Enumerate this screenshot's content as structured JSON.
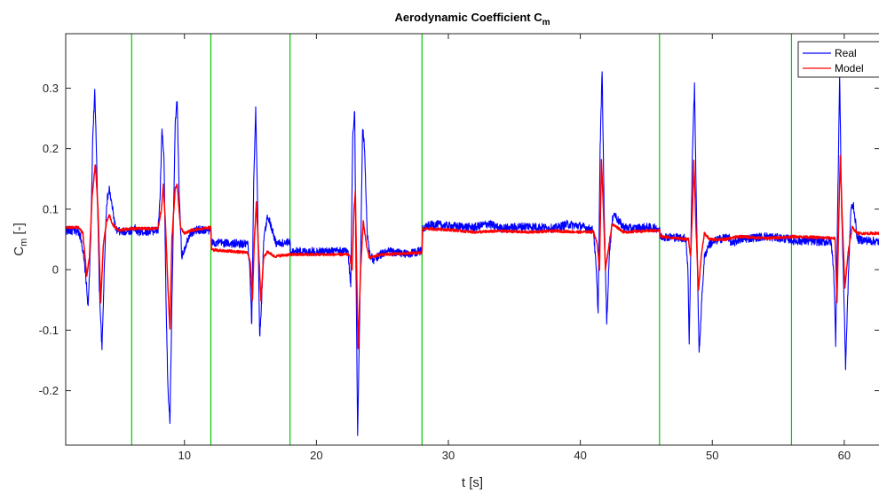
{
  "chart_data": {
    "type": "line",
    "title": "Aerodynamic Coefficient C",
    "title_subscript": "m",
    "xlabel": "t [s]",
    "ylabel": "C",
    "ylabel_subscript": "m",
    "ylabel_suffix": " [-]",
    "xlim": [
      1,
      62.7
    ],
    "ylim": [
      -0.29,
      0.39
    ],
    "xticks": [
      10,
      20,
      30,
      40,
      50,
      60
    ],
    "yticks": [
      -0.2,
      -0.1,
      0,
      0.1,
      0.2,
      0.3
    ],
    "ytick_labels": [
      "-0.2",
      "-0.1",
      "0",
      "0.1",
      "0.2",
      "0.3"
    ],
    "grid": false,
    "legend_position": "top-right",
    "vertical_lines": {
      "color": "#00c800",
      "x": [
        6,
        12,
        18,
        28,
        46,
        56
      ]
    },
    "series": [
      {
        "name": "Real",
        "color": "#0000ff",
        "noise": 0.007,
        "points": [
          [
            1.0,
            0.065
          ],
          [
            2.0,
            0.063
          ],
          [
            2.2,
            0.048
          ],
          [
            2.5,
            -0.005
          ],
          [
            2.7,
            -0.062
          ],
          [
            2.9,
            0.05
          ],
          [
            3.05,
            0.22
          ],
          [
            3.2,
            0.294
          ],
          [
            3.35,
            0.18
          ],
          [
            3.55,
            -0.03
          ],
          [
            3.75,
            -0.133
          ],
          [
            3.95,
            0.02
          ],
          [
            4.1,
            0.11
          ],
          [
            4.3,
            0.133
          ],
          [
            4.55,
            0.1
          ],
          [
            4.8,
            0.065
          ],
          [
            5.2,
            0.062
          ],
          [
            6.0,
            0.065
          ],
          [
            6.2,
            0.07
          ],
          [
            6.4,
            0.062
          ],
          [
            8.0,
            0.065
          ],
          [
            8.15,
            0.12
          ],
          [
            8.3,
            0.233
          ],
          [
            8.45,
            0.18
          ],
          [
            8.6,
            -0.05
          ],
          [
            8.75,
            -0.2
          ],
          [
            8.9,
            -0.25
          ],
          [
            9.05,
            -0.05
          ],
          [
            9.3,
            0.24
          ],
          [
            9.45,
            0.282
          ],
          [
            9.6,
            0.12
          ],
          [
            9.8,
            0.02
          ],
          [
            10.0,
            0.035
          ],
          [
            10.4,
            0.06
          ],
          [
            11.0,
            0.066
          ],
          [
            12.0,
            0.065
          ],
          [
            12.05,
            0.045
          ],
          [
            14.8,
            0.042
          ],
          [
            14.95,
            0.0
          ],
          [
            15.1,
            -0.093
          ],
          [
            15.25,
            0.15
          ],
          [
            15.4,
            0.265
          ],
          [
            15.55,
            0.1
          ],
          [
            15.7,
            -0.113
          ],
          [
            15.85,
            -0.05
          ],
          [
            16.0,
            0.048
          ],
          [
            16.3,
            0.09
          ],
          [
            16.6,
            0.07
          ],
          [
            16.9,
            0.045
          ],
          [
            17.2,
            0.043
          ],
          [
            18.0,
            0.045
          ],
          [
            18.05,
            0.03
          ],
          [
            22.4,
            0.03
          ],
          [
            22.6,
            -0.03
          ],
          [
            22.75,
            0.22
          ],
          [
            22.9,
            0.266
          ],
          [
            23.0,
            0.0
          ],
          [
            23.12,
            -0.271
          ],
          [
            23.3,
            -0.05
          ],
          [
            23.5,
            0.235
          ],
          [
            23.65,
            0.2
          ],
          [
            23.85,
            0.06
          ],
          [
            24.0,
            0.03
          ],
          [
            24.3,
            0.015
          ],
          [
            24.8,
            0.025
          ],
          [
            25.5,
            0.03
          ],
          [
            27.0,
            0.025
          ],
          [
            28.0,
            0.032
          ],
          [
            28.05,
            0.07
          ],
          [
            29.0,
            0.075
          ],
          [
            30.0,
            0.072
          ],
          [
            32.0,
            0.07
          ],
          [
            33.0,
            0.076
          ],
          [
            34.0,
            0.068
          ],
          [
            36.0,
            0.072
          ],
          [
            38.0,
            0.068
          ],
          [
            39.0,
            0.075
          ],
          [
            40.0,
            0.072
          ],
          [
            41.0,
            0.065
          ],
          [
            41.2,
            0.0
          ],
          [
            41.35,
            -0.07
          ],
          [
            41.5,
            0.2
          ],
          [
            41.65,
            0.331
          ],
          [
            41.8,
            0.1
          ],
          [
            42.0,
            -0.09
          ],
          [
            42.2,
            0.03
          ],
          [
            42.5,
            0.095
          ],
          [
            42.9,
            0.08
          ],
          [
            43.3,
            0.07
          ],
          [
            44.0,
            0.068
          ],
          [
            45.0,
            0.07
          ],
          [
            46.0,
            0.068
          ],
          [
            46.05,
            0.055
          ],
          [
            48.0,
            0.052
          ],
          [
            48.15,
            0.0
          ],
          [
            48.25,
            -0.12
          ],
          [
            48.5,
            0.2
          ],
          [
            48.65,
            0.303
          ],
          [
            48.8,
            0.1
          ],
          [
            49.0,
            -0.142
          ],
          [
            49.2,
            -0.05
          ],
          [
            49.4,
            0.02
          ],
          [
            49.7,
            0.04
          ],
          [
            50.0,
            0.045
          ],
          [
            50.5,
            0.05
          ],
          [
            51.2,
            0.055
          ],
          [
            51.5,
            0.042
          ],
          [
            52.0,
            0.05
          ],
          [
            54.0,
            0.055
          ],
          [
            56.0,
            0.05
          ],
          [
            56.05,
            0.048
          ],
          [
            59.0,
            0.046
          ],
          [
            59.2,
            0.0
          ],
          [
            59.35,
            -0.12
          ],
          [
            59.5,
            0.1
          ],
          [
            59.65,
            0.32
          ],
          [
            59.8,
            0.1
          ],
          [
            59.95,
            -0.02
          ],
          [
            60.1,
            -0.16
          ],
          [
            60.3,
            -0.02
          ],
          [
            60.5,
            0.1
          ],
          [
            60.7,
            0.107
          ],
          [
            61.0,
            0.05
          ],
          [
            62.7,
            0.046
          ]
        ]
      },
      {
        "name": "Model",
        "color": "#ff0000",
        "noise": 0.0022,
        "points": [
          [
            1.0,
            0.07
          ],
          [
            2.0,
            0.07
          ],
          [
            2.3,
            0.06
          ],
          [
            2.6,
            -0.01
          ],
          [
            2.8,
            0.02
          ],
          [
            3.0,
            0.12
          ],
          [
            3.25,
            0.175
          ],
          [
            3.45,
            0.1
          ],
          [
            3.65,
            -0.055
          ],
          [
            3.85,
            0.04
          ],
          [
            4.1,
            0.08
          ],
          [
            4.3,
            0.09
          ],
          [
            4.55,
            0.075
          ],
          [
            5.0,
            0.065
          ],
          [
            6.0,
            0.068
          ],
          [
            8.0,
            0.068
          ],
          [
            8.25,
            0.1
          ],
          [
            8.4,
            0.14
          ],
          [
            8.55,
            0.08
          ],
          [
            8.75,
            -0.03
          ],
          [
            8.9,
            -0.1
          ],
          [
            9.05,
            0.05
          ],
          [
            9.3,
            0.135
          ],
          [
            9.45,
            0.14
          ],
          [
            9.7,
            0.07
          ],
          [
            10.0,
            0.06
          ],
          [
            10.5,
            0.065
          ],
          [
            12.0,
            0.07
          ],
          [
            12.05,
            0.033
          ],
          [
            14.8,
            0.028
          ],
          [
            15.0,
            0.01
          ],
          [
            15.15,
            -0.05
          ],
          [
            15.3,
            0.05
          ],
          [
            15.45,
            0.112
          ],
          [
            15.6,
            0.04
          ],
          [
            15.8,
            -0.05
          ],
          [
            16.0,
            0.02
          ],
          [
            16.3,
            0.03
          ],
          [
            16.8,
            0.022
          ],
          [
            18.0,
            0.025
          ],
          [
            18.05,
            0.025
          ],
          [
            22.5,
            0.025
          ],
          [
            22.7,
            0.0
          ],
          [
            22.85,
            0.1
          ],
          [
            22.95,
            0.128
          ],
          [
            23.05,
            0.0
          ],
          [
            23.15,
            -0.13
          ],
          [
            23.35,
            0.0
          ],
          [
            23.55,
            0.08
          ],
          [
            23.8,
            0.04
          ],
          [
            24.0,
            0.02
          ],
          [
            25.0,
            0.025
          ],
          [
            28.0,
            0.028
          ],
          [
            28.05,
            0.068
          ],
          [
            30.0,
            0.066
          ],
          [
            32.0,
            0.062
          ],
          [
            34.0,
            0.064
          ],
          [
            36.0,
            0.062
          ],
          [
            38.0,
            0.064
          ],
          [
            40.0,
            0.062
          ],
          [
            41.0,
            0.063
          ],
          [
            41.3,
            0.04
          ],
          [
            41.45,
            0.0
          ],
          [
            41.6,
            0.18
          ],
          [
            41.75,
            0.1
          ],
          [
            41.9,
            0.0
          ],
          [
            42.1,
            0.03
          ],
          [
            42.4,
            0.075
          ],
          [
            42.8,
            0.07
          ],
          [
            43.3,
            0.062
          ],
          [
            44.0,
            0.063
          ],
          [
            46.0,
            0.065
          ],
          [
            46.05,
            0.055
          ],
          [
            48.2,
            0.05
          ],
          [
            48.35,
            0.02
          ],
          [
            48.5,
            0.1
          ],
          [
            48.6,
            0.18
          ],
          [
            48.75,
            0.08
          ],
          [
            48.95,
            -0.035
          ],
          [
            49.15,
            0.02
          ],
          [
            49.4,
            0.06
          ],
          [
            49.8,
            0.05
          ],
          [
            51.0,
            0.05
          ],
          [
            52.0,
            0.055
          ],
          [
            54.0,
            0.052
          ],
          [
            56.0,
            0.054
          ],
          [
            56.05,
            0.055
          ],
          [
            59.3,
            0.052
          ],
          [
            59.45,
            -0.055
          ],
          [
            59.6,
            0.1
          ],
          [
            59.7,
            0.187
          ],
          [
            59.85,
            0.08
          ],
          [
            60.05,
            -0.03
          ],
          [
            60.3,
            0.03
          ],
          [
            60.6,
            0.07
          ],
          [
            61.0,
            0.06
          ],
          [
            62.7,
            0.06
          ]
        ]
      }
    ]
  }
}
